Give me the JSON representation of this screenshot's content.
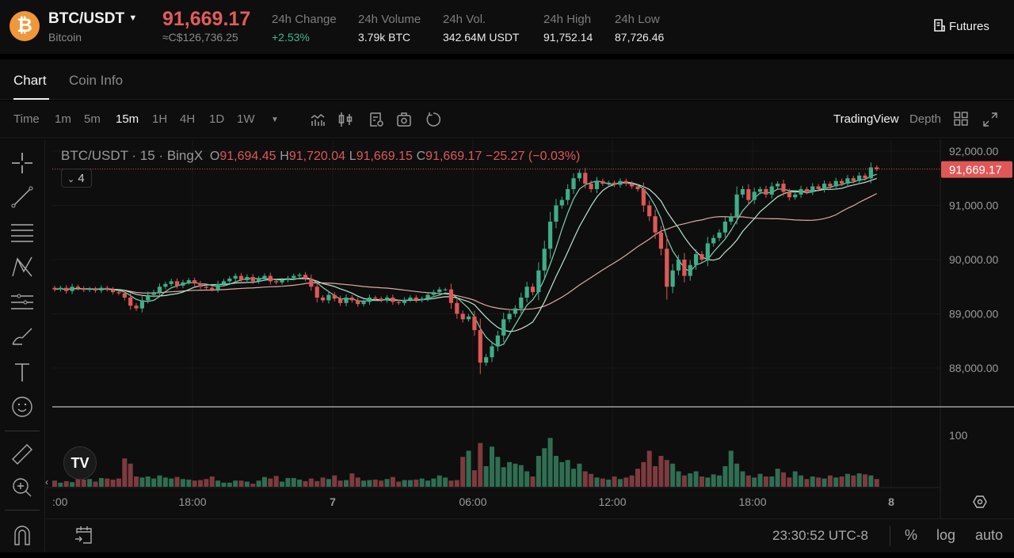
{
  "header": {
    "symbol": "BTC/USDT",
    "coin_name": "Bitcoin",
    "last_price": "91,669.17",
    "fiat_price": "≈C$126,736.25",
    "stats": [
      {
        "label": "24h Change",
        "value": "+2.53%"
      },
      {
        "label": "24h Volume",
        "value": "3.79k BTC"
      },
      {
        "label": "24h Vol.",
        "value": "342.64M USDT"
      },
      {
        "label": "24h High",
        "value": "91,752.14"
      },
      {
        "label": "24h Low",
        "value": "87,726.46"
      }
    ],
    "futures_label": "Futures"
  },
  "tabs": [
    {
      "label": "Chart",
      "active": true
    },
    {
      "label": "Coin Info",
      "active": false
    }
  ],
  "toolbar": {
    "timeframes": [
      "Time",
      "1m",
      "5m",
      "15m",
      "1H",
      "4H",
      "1D",
      "1W"
    ],
    "active_timeframe": "15m",
    "tradingview_label": "TradingView",
    "depth_label": "Depth",
    "icons": [
      "indicators-icon",
      "candle-type-icon",
      "chart-settings-icon",
      "screenshot-icon",
      "refresh-icon",
      "layout-grid-icon",
      "fullscreen-icon"
    ]
  },
  "legend": {
    "title": "BTC/USDT · 15 · BingX",
    "o_label": "O",
    "o": "91,694.45",
    "h_label": "H",
    "h": "91,720.04",
    "l_label": "L",
    "l": "91,669.15",
    "c_label": "C",
    "c": "91,669.17",
    "change": "−25.27 (−0.03%)",
    "indicators_count": "4"
  },
  "colors": {
    "up": "#3fae88",
    "down": "#e05757",
    "vol_up": "#2f6e52",
    "vol_down": "#7d3b40",
    "price_tag": "#e05757"
  },
  "bottom": {
    "time": "23:30:52 UTC-8",
    "percent_label": "%",
    "log_label": "log",
    "auto_label": "auto"
  },
  "chart_data": {
    "type": "candlestick",
    "interval": "15m",
    "y_ticks": [
      "92,000.00",
      "91,000.00",
      "90,000.00",
      "89,000.00",
      "88,000.00"
    ],
    "ylim": [
      87600,
      92100
    ],
    "volume_ticks": [
      "100"
    ],
    "x_ticks": [
      ":00",
      "18:00",
      "7",
      "06:00",
      "12:00",
      "18:00",
      "8"
    ],
    "last_price_tag": "91,669.17",
    "close": [
      89450,
      89480,
      89420,
      89500,
      89470,
      89440,
      89460,
      89430,
      89480,
      89450,
      89400,
      89380,
      89300,
      89150,
      89100,
      89250,
      89350,
      89400,
      89500,
      89550,
      89600,
      89520,
      89580,
      89620,
      89560,
      89500,
      89480,
      89450,
      89550,
      89600,
      89650,
      89700,
      89620,
      89680,
      89600,
      89650,
      89700,
      89600,
      89580,
      89620,
      89660,
      89700,
      89720,
      89650,
      89500,
      89300,
      89250,
      89350,
      89280,
      89200,
      89300,
      89250,
      89180,
      89220,
      89300,
      89280,
      89250,
      89300,
      89220,
      89200,
      89260,
      89300,
      89250,
      89280,
      89350,
      89400,
      89450,
      89450,
      89200,
      89000,
      88900,
      88950,
      88700,
      88100,
      88200,
      88400,
      88600,
      88900,
      89000,
      89100,
      89300,
      89500,
      89400,
      89800,
      90200,
      90700,
      91000,
      91100,
      91300,
      91500,
      91600,
      91400,
      91300,
      91450,
      91400,
      91420,
      91380,
      91450,
      91400,
      91350,
      91300,
      91000,
      90800,
      90500,
      90200,
      89500,
      89800,
      90000,
      89700,
      89900,
      90100,
      90000,
      90300,
      90400,
      90500,
      90700,
      90800,
      91200,
      91300,
      91100,
      91250,
      91300,
      91200,
      91350,
      91400,
      91250,
      91150,
      91200,
      91300,
      91250,
      91350,
      91300,
      91400,
      91350,
      91450,
      91400,
      91500,
      91450,
      91550,
      91500,
      91700,
      91669.17
    ],
    "volume": [
      12,
      8,
      11,
      9,
      18,
      14,
      15,
      10,
      17,
      16,
      14,
      16,
      55,
      45,
      20,
      18,
      20,
      16,
      22,
      18,
      16,
      19,
      15,
      14,
      12,
      13,
      15,
      20,
      12,
      8,
      8,
      12,
      12,
      10,
      6,
      12,
      19,
      16,
      21,
      10,
      17,
      17,
      14,
      11,
      16,
      11,
      18,
      15,
      22,
      12,
      13,
      26,
      18,
      12,
      13,
      14,
      12,
      15,
      19,
      10,
      13,
      13,
      14,
      16,
      12,
      16,
      22,
      18,
      12,
      13,
      58,
      70,
      32,
      85,
      40,
      78,
      58,
      38,
      48,
      45,
      42,
      30,
      20,
      60,
      75,
      95,
      60,
      48,
      52,
      35,
      45,
      30,
      25,
      18,
      16,
      14,
      20,
      15,
      18,
      22,
      35,
      48,
      70,
      40,
      60,
      52,
      45,
      30,
      22,
      26,
      30,
      20,
      18,
      24,
      22,
      40,
      70,
      45,
      30,
      22,
      18,
      25,
      20,
      20,
      35,
      28,
      18,
      30,
      22,
      15,
      20,
      18,
      16,
      22,
      18,
      20,
      25,
      22,
      26,
      24,
      22,
      15
    ]
  }
}
